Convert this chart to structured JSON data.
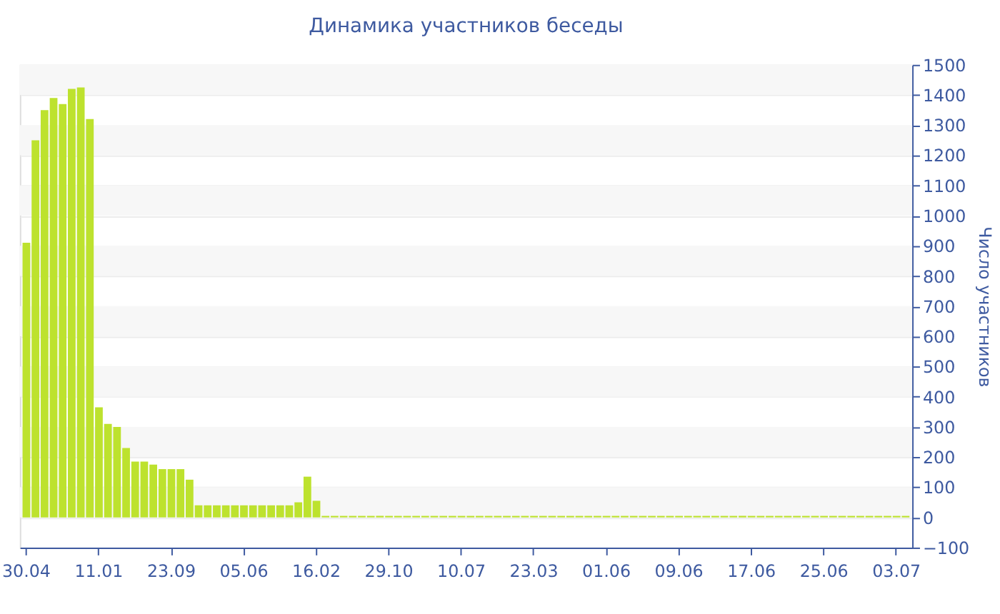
{
  "chart_data": {
    "type": "bar",
    "title": "Динамика участников беседы",
    "ylabel": "Число участников",
    "categories": [
      "30.04",
      null,
      null,
      null,
      null,
      null,
      null,
      null,
      "11.01",
      null,
      null,
      null,
      null,
      null,
      null,
      null,
      "23.09",
      null,
      null,
      null,
      null,
      null,
      null,
      null,
      "05.06",
      null,
      null,
      null,
      null,
      null,
      null,
      null,
      "16.02",
      null,
      null,
      null,
      null,
      null,
      null,
      null,
      "29.10",
      null,
      null,
      null,
      null,
      null,
      null,
      null,
      "10.07",
      null,
      null,
      null,
      null,
      null,
      null,
      null,
      "23.03",
      null,
      null,
      null,
      null,
      null,
      null,
      null,
      "01.06",
      null,
      null,
      null,
      null,
      null,
      null,
      null,
      "09.06",
      null,
      null,
      null,
      null,
      null,
      null,
      null,
      "17.06",
      null,
      null,
      null,
      null,
      null,
      null,
      null,
      "25.06",
      null,
      null,
      null,
      null,
      null,
      null,
      null,
      "03.07",
      null
    ],
    "values": [
      910,
      1250,
      1350,
      1390,
      1370,
      1420,
      1425,
      1320,
      365,
      310,
      300,
      230,
      185,
      185,
      175,
      160,
      160,
      160,
      125,
      40,
      40,
      40,
      40,
      40,
      40,
      40,
      40,
      40,
      40,
      40,
      50,
      135,
      55,
      5,
      5,
      5,
      5,
      5,
      5,
      5,
      5,
      5,
      5,
      5,
      5,
      5,
      5,
      5,
      5,
      5,
      5,
      5,
      5,
      5,
      5,
      5,
      5,
      5,
      5,
      5,
      5,
      5,
      5,
      5,
      5,
      5,
      5,
      5,
      5,
      5,
      5,
      5,
      5,
      5,
      5,
      5,
      5,
      5,
      5,
      5,
      5,
      5,
      5,
      5,
      5,
      5,
      5,
      5,
      5,
      5,
      5,
      5,
      5,
      5,
      5,
      5,
      5,
      5
    ],
    "color": "#bde22e",
    "ylim": [
      -100,
      1500
    ],
    "yticks": [
      -100,
      0,
      100,
      200,
      300,
      400,
      500,
      600,
      700,
      800,
      900,
      1000,
      1100,
      1200,
      1300,
      1400,
      1500
    ],
    "grid": true
  }
}
